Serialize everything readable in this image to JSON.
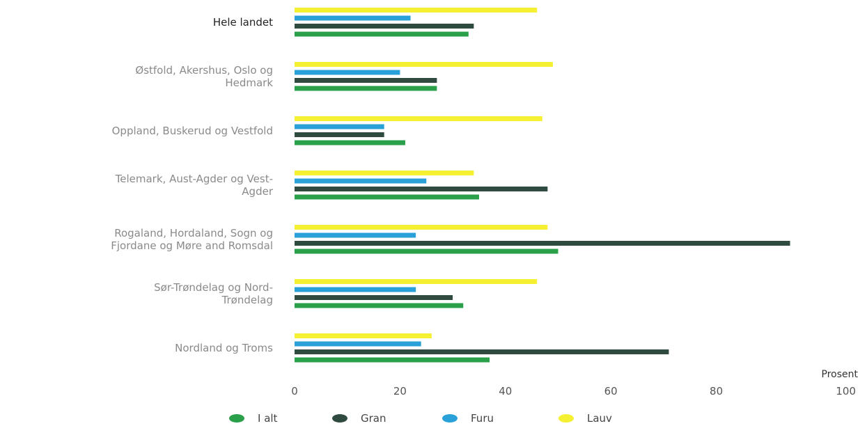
{
  "chart_data": {
    "type": "bar",
    "orientation": "horizontal",
    "title": "",
    "xlabel": "Prosent",
    "ylabel": "",
    "xlim": [
      0,
      100
    ],
    "ticks": [
      "0",
      "20",
      "40",
      "60",
      "80",
      "100"
    ],
    "tick_values": [
      0,
      20,
      40,
      60,
      80,
      100
    ],
    "grid": false,
    "legend_position": "bottom",
    "categories": [
      [
        "Hele landet"
      ],
      [
        "Østfold, Akershus, Oslo og",
        "Hedmark"
      ],
      [
        "Oppland, Buskerud og Vestfold"
      ],
      [
        "Telemark, Aust-Agder og Vest-",
        "Agder"
      ],
      [
        "Rogaland, Hordaland, Sogn og",
        "Fjordane og Møre and Romsdal"
      ],
      [
        "Sør-Trøndelag og Nord-",
        "Trøndelag"
      ],
      [
        "Nordland og Troms"
      ]
    ],
    "series": [
      {
        "name": "Lauv",
        "color": "#f5f032",
        "values": [
          46,
          49,
          47,
          34,
          48,
          46,
          26
        ]
      },
      {
        "name": "Furu",
        "color": "#2aa0d8",
        "values": [
          22,
          20,
          17,
          25,
          23,
          23,
          24
        ]
      },
      {
        "name": "Gran",
        "color": "#2f4a3f",
        "values": [
          34,
          27,
          17,
          48,
          94,
          30,
          71
        ]
      },
      {
        "name": "I alt",
        "color": "#2aa04a",
        "values": [
          33,
          27,
          21,
          35,
          50,
          32,
          37
        ]
      }
    ],
    "legend": [
      {
        "label": "I alt",
        "color": "#2aa04a"
      },
      {
        "label": "Gran",
        "color": "#2f4a3f"
      },
      {
        "label": "Furu",
        "color": "#2aa0d8"
      },
      {
        "label": "Lauv",
        "color": "#f5f032"
      }
    ]
  }
}
